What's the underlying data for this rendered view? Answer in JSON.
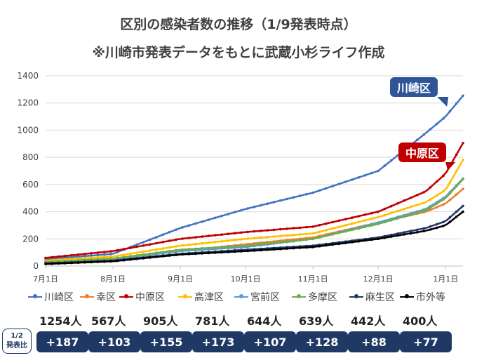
{
  "header": {
    "title": "区別の感染者数の推移（1/9発表時点）",
    "subtitle": "※川崎市発表データをもとに武蔵小杉ライフ作成"
  },
  "chart_data": {
    "type": "line",
    "y_ticks": [
      "0",
      "200",
      "400",
      "600",
      "800",
      "1000",
      "1200",
      "1400"
    ],
    "ylim": [
      0,
      1400
    ],
    "x_ticks": [
      "7月1日",
      "8月1日",
      "9月1日",
      "10月1日",
      "11月1日",
      "12月1日",
      "1月1日"
    ],
    "x_start": "2020-07-01",
    "x_end": "2021-01-09",
    "series": [
      {
        "name": "川崎区",
        "color": "#4472c4",
        "values": [
          [
            0,
            50
          ],
          [
            31,
            90
          ],
          [
            62,
            280
          ],
          [
            92,
            420
          ],
          [
            123,
            540
          ],
          [
            153,
            700
          ],
          [
            175,
            980
          ],
          [
            184,
            1100
          ],
          [
            192,
            1254
          ]
        ]
      },
      {
        "name": "幸区",
        "color": "#ed7d31",
        "values": [
          [
            0,
            30
          ],
          [
            31,
            55
          ],
          [
            62,
            110
          ],
          [
            92,
            160
          ],
          [
            123,
            210
          ],
          [
            153,
            320
          ],
          [
            175,
            400
          ],
          [
            184,
            460
          ],
          [
            192,
            567
          ]
        ]
      },
      {
        "name": "中原区",
        "color": "#c00000",
        "values": [
          [
            0,
            60
          ],
          [
            31,
            110
          ],
          [
            62,
            200
          ],
          [
            92,
            250
          ],
          [
            123,
            290
          ],
          [
            153,
            400
          ],
          [
            175,
            550
          ],
          [
            184,
            680
          ],
          [
            192,
            905
          ]
        ]
      },
      {
        "name": "高津区",
        "color": "#ffc000",
        "values": [
          [
            0,
            40
          ],
          [
            31,
            70
          ],
          [
            62,
            150
          ],
          [
            92,
            200
          ],
          [
            123,
            240
          ],
          [
            153,
            360
          ],
          [
            175,
            470
          ],
          [
            184,
            560
          ],
          [
            192,
            781
          ]
        ]
      },
      {
        "name": "宮前区",
        "color": "#5b9bd5",
        "values": [
          [
            0,
            30
          ],
          [
            31,
            50
          ],
          [
            62,
            110
          ],
          [
            92,
            140
          ],
          [
            123,
            200
          ],
          [
            153,
            320
          ],
          [
            175,
            420
          ],
          [
            184,
            510
          ],
          [
            192,
            644
          ]
        ]
      },
      {
        "name": "多摩区",
        "color": "#70ad47",
        "values": [
          [
            0,
            30
          ],
          [
            31,
            55
          ],
          [
            62,
            120
          ],
          [
            92,
            150
          ],
          [
            123,
            200
          ],
          [
            153,
            310
          ],
          [
            175,
            410
          ],
          [
            184,
            500
          ],
          [
            192,
            639
          ]
        ]
      },
      {
        "name": "麻生区",
        "color": "#203864",
        "values": [
          [
            0,
            20
          ],
          [
            31,
            40
          ],
          [
            62,
            90
          ],
          [
            92,
            120
          ],
          [
            123,
            150
          ],
          [
            153,
            210
          ],
          [
            175,
            280
          ],
          [
            184,
            330
          ],
          [
            192,
            442
          ]
        ]
      },
      {
        "name": "市外等",
        "color": "#000000",
        "values": [
          [
            0,
            15
          ],
          [
            31,
            35
          ],
          [
            62,
            85
          ],
          [
            92,
            110
          ],
          [
            123,
            140
          ],
          [
            153,
            200
          ],
          [
            175,
            260
          ],
          [
            184,
            300
          ],
          [
            192,
            400
          ]
        ]
      }
    ],
    "legend_position": "bottom",
    "grid": true
  },
  "callouts": {
    "kawasaki": "川崎区",
    "nakahara": "中原区"
  },
  "totals": [
    "1254人",
    "567人",
    "905人",
    "781人",
    "644人",
    "639人",
    "442人",
    "400人"
  ],
  "comparison_label_1": "1/2",
  "comparison_label_2": "発表比",
  "increases": [
    "+187",
    "+103",
    "+155",
    "+173",
    "+107",
    "+128",
    "+88",
    "+77"
  ]
}
